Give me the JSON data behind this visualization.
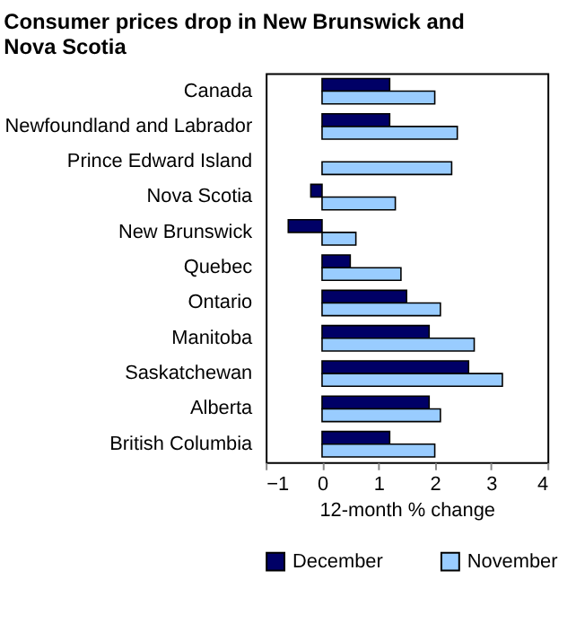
{
  "chart_data": {
    "type": "bar",
    "orientation": "horizontal",
    "title": "Consumer prices drop in New Brunswick and Nova Scotia",
    "categories": [
      "Canada",
      "Newfoundland and Labrador",
      "Prince Edward Island",
      "Nova Scotia",
      "New Brunswick",
      "Quebec",
      "Ontario",
      "Manitoba",
      "Saskatchewan",
      "Alberta",
      "British Columbia"
    ],
    "series": [
      {
        "name": "December",
        "color": "#000066",
        "values": [
          1.2,
          1.2,
          null,
          -0.2,
          -0.6,
          0.5,
          1.5,
          1.9,
          2.6,
          1.9,
          1.2
        ]
      },
      {
        "name": "November",
        "color": "#99ccff",
        "values": [
          2.0,
          2.4,
          2.3,
          1.3,
          0.6,
          1.4,
          2.1,
          2.7,
          3.2,
          2.1,
          2.0
        ]
      }
    ],
    "xlabel": "12-month % change",
    "xlim": [
      -1,
      4
    ],
    "xticks": [
      -1,
      0,
      1,
      2,
      3,
      4
    ],
    "grid": false,
    "legend": "bottom"
  }
}
